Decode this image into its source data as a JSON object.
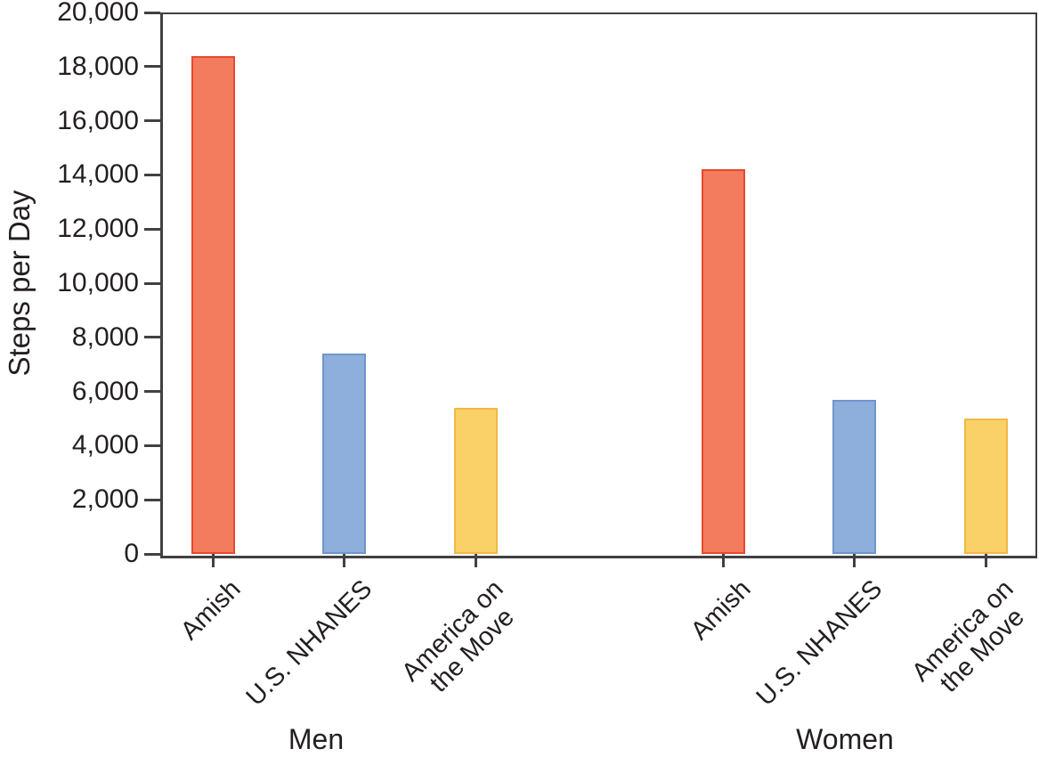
{
  "chart_data": {
    "type": "bar",
    "title": "",
    "ylabel": "Steps per Day",
    "xlabel": "",
    "ylim": [
      0,
      20000
    ],
    "ytick_step": 2000,
    "yticks": [
      0,
      2000,
      4000,
      6000,
      8000,
      10000,
      12000,
      14000,
      16000,
      18000,
      20000
    ],
    "ytick_labels": [
      "0",
      "2,000",
      "4,000",
      "6,000",
      "8,000",
      "10,000",
      "12,000",
      "14,000",
      "16,000",
      "18,000",
      "20,000"
    ],
    "grid": false,
    "legend_position": "none",
    "groups": [
      "Men",
      "Women"
    ],
    "categories": [
      "Amish",
      "U.S. NHANES",
      "America on the Move"
    ],
    "category_label_lines": [
      [
        "Amish"
      ],
      [
        "U.S. NHANES"
      ],
      [
        "America on",
        "the Move"
      ]
    ],
    "series": [
      {
        "name": "Men",
        "values": [
          18400,
          7400,
          5400
        ]
      },
      {
        "name": "Women",
        "values": [
          14200,
          5700,
          5000
        ]
      }
    ],
    "bar_styles": [
      {
        "category": "Amish",
        "fill": "#f37b5e",
        "stroke": "#e8492c"
      },
      {
        "category": "U.S. NHANES",
        "fill": "#8eaedb",
        "stroke": "#6e96cc"
      },
      {
        "category": "America on the Move",
        "fill": "#fad169",
        "stroke": "#f1b843"
      }
    ],
    "colors": {
      "axis": "#414042",
      "text": "#231f20",
      "background": "#ffffff"
    }
  }
}
